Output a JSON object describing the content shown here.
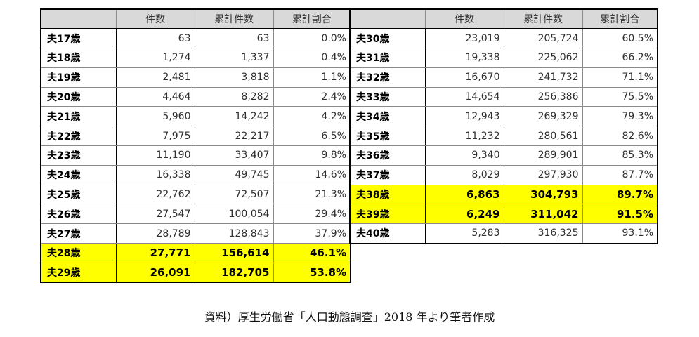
{
  "headers": {
    "count": "件数",
    "cumulative_count": "累計件数",
    "cumulative_ratio": "累計割合"
  },
  "left_rows": [
    {
      "age": "夫17歳",
      "count": "63",
      "cumulative": "63",
      "ratio": "0.0%",
      "highlight": false
    },
    {
      "age": "夫18歳",
      "count": "1,274",
      "cumulative": "1,337",
      "ratio": "0.4%",
      "highlight": false
    },
    {
      "age": "夫19歳",
      "count": "2,481",
      "cumulative": "3,818",
      "ratio": "1.1%",
      "highlight": false
    },
    {
      "age": "夫20歳",
      "count": "4,464",
      "cumulative": "8,282",
      "ratio": "2.4%",
      "highlight": false
    },
    {
      "age": "夫21歳",
      "count": "5,960",
      "cumulative": "14,242",
      "ratio": "4.2%",
      "highlight": false
    },
    {
      "age": "夫22歳",
      "count": "7,975",
      "cumulative": "22,217",
      "ratio": "6.5%",
      "highlight": false
    },
    {
      "age": "夫23歳",
      "count": "11,190",
      "cumulative": "33,407",
      "ratio": "9.8%",
      "highlight": false
    },
    {
      "age": "夫24歳",
      "count": "16,338",
      "cumulative": "49,745",
      "ratio": "14.6%",
      "highlight": false
    },
    {
      "age": "夫25歳",
      "count": "22,762",
      "cumulative": "72,507",
      "ratio": "21.3%",
      "highlight": false
    },
    {
      "age": "夫26歳",
      "count": "27,547",
      "cumulative": "100,054",
      "ratio": "29.4%",
      "highlight": false
    },
    {
      "age": "夫27歳",
      "count": "28,789",
      "cumulative": "128,843",
      "ratio": "37.9%",
      "highlight": false
    },
    {
      "age": "夫28歳",
      "count": "27,771",
      "cumulative": "156,614",
      "ratio": "46.1%",
      "highlight": true
    },
    {
      "age": "夫29歳",
      "count": "26,091",
      "cumulative": "182,705",
      "ratio": "53.8%",
      "highlight": true
    }
  ],
  "right_rows": [
    {
      "age": "夫30歳",
      "count": "23,019",
      "cumulative": "205,724",
      "ratio": "60.5%",
      "highlight": false
    },
    {
      "age": "夫31歳",
      "count": "19,338",
      "cumulative": "225,062",
      "ratio": "66.2%",
      "highlight": false
    },
    {
      "age": "夫32歳",
      "count": "16,670",
      "cumulative": "241,732",
      "ratio": "71.1%",
      "highlight": false
    },
    {
      "age": "夫33歳",
      "count": "14,654",
      "cumulative": "256,386",
      "ratio": "75.5%",
      "highlight": false
    },
    {
      "age": "夫34歳",
      "count": "12,943",
      "cumulative": "269,329",
      "ratio": "79.3%",
      "highlight": false
    },
    {
      "age": "夫35歳",
      "count": "11,232",
      "cumulative": "280,561",
      "ratio": "82.6%",
      "highlight": false
    },
    {
      "age": "夫36歳",
      "count": "9,340",
      "cumulative": "289,901",
      "ratio": "85.3%",
      "highlight": false
    },
    {
      "age": "夫37歳",
      "count": "8,029",
      "cumulative": "297,930",
      "ratio": "87.7%",
      "highlight": false
    },
    {
      "age": "夫38歳",
      "count": "6,863",
      "cumulative": "304,793",
      "ratio": "89.7%",
      "highlight": true
    },
    {
      "age": "夫39歳",
      "count": "6,249",
      "cumulative": "311,042",
      "ratio": "91.5%",
      "highlight": true
    },
    {
      "age": "夫40歳",
      "count": "5,283",
      "cumulative": "316,325",
      "ratio": "93.1%",
      "highlight": false
    }
  ],
  "caption": "資料）厚生労働省「人口動態調査」2018 年より筆者作成",
  "colors": {
    "highlight": "#ffff00",
    "header_bg": "#d9d9d9"
  }
}
